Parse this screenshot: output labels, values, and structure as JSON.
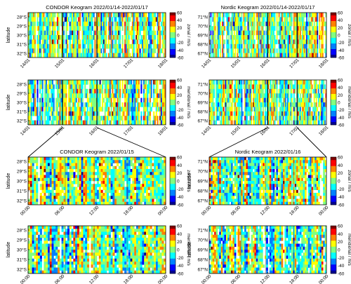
{
  "figure": {
    "colors": {
      "colormap": [
        "#00008f",
        "#0000ff",
        "#0080ff",
        "#00ffff",
        "#80ff80",
        "#ffff00",
        "#ff8000",
        "#ff0000",
        "#800000"
      ],
      "axis": "#000000",
      "connector": "#000000"
    }
  },
  "chart_data": [
    {
      "type": "heatmap",
      "title": "CONDOR Keogram 2022/01/14-2022/01/17",
      "ylabel": "latitude",
      "y_ticks": [
        "28°S",
        "29°S",
        "30°S",
        "31°S",
        "32°S"
      ],
      "x_ticks": [
        "14/01",
        "15/01",
        "16/01",
        "17/01",
        "18/01"
      ],
      "x_range": [
        "14/01",
        "18/01"
      ],
      "colorbar": {
        "label": "zonal / m/s",
        "range": [
          -60,
          60
        ],
        "ticks": [
          "60",
          "40",
          "20",
          "0",
          "-20",
          "-40",
          "-60"
        ]
      },
      "marked_times": [
        "15/01 00:00",
        "16/01 00:00"
      ]
    },
    {
      "type": "heatmap",
      "title": "Nordic Keogram 2022/01/14-2022/01/17",
      "ylabel": "",
      "y_ticks": [
        "71°N",
        "70°N",
        "69°N",
        "68°N",
        "67°N"
      ],
      "x_ticks": [
        "14/01",
        "15/01",
        "16/01",
        "17/01",
        "18/01"
      ],
      "x_range": [
        "14/01",
        "18/01"
      ],
      "colorbar": {
        "label": "zonal / m/s",
        "range": [
          -60,
          60
        ],
        "ticks": [
          "60",
          "40",
          "20",
          "0",
          "-20",
          "-40",
          "-60"
        ]
      },
      "marked_times": [
        "16/01 00:00",
        "17/01 00:00"
      ]
    },
    {
      "type": "heatmap",
      "title": "",
      "ylabel": "latitude",
      "y_ticks": [
        "28°S",
        "29°S",
        "30°S",
        "31°S",
        "32°S"
      ],
      "x_ticks": [
        "14/01",
        "15/01",
        "16/01",
        "17/01",
        "18/01"
      ],
      "x_range": [
        "14/01",
        "18/01"
      ],
      "colorbar": {
        "label": "meridional / m/s",
        "range": [
          -60,
          60
        ],
        "ticks": [
          "60",
          "40",
          "20",
          "0",
          "-20",
          "-40",
          "-60"
        ]
      },
      "marked_times": [
        "15/01 00:00",
        "16/01 00:00"
      ]
    },
    {
      "type": "heatmap",
      "title": "",
      "ylabel": "",
      "y_ticks": [
        "71°N",
        "70°N",
        "69°N",
        "68°N",
        "67°N"
      ],
      "x_ticks": [
        "14/01",
        "15/01",
        "16/01",
        "17/01",
        "18/01"
      ],
      "x_range": [
        "14/01",
        "18/01"
      ],
      "colorbar": {
        "label": "meridional / m/s",
        "range": [
          -60,
          60
        ],
        "ticks": [
          "60",
          "40",
          "20",
          "0",
          "-20",
          "-40",
          "-60"
        ]
      },
      "marked_times": [
        "16/01 00:00",
        "17/01 00:00"
      ]
    },
    {
      "type": "heatmap",
      "title": "CONDOR Keogram 2022/01/15",
      "ylabel": "latitude",
      "y_ticks": [
        "28°S",
        "29°S",
        "30°S",
        "31°S",
        "32°S"
      ],
      "x_ticks": [
        "00:00",
        "06:00",
        "12:00",
        "18:00",
        "00:00"
      ],
      "x_range": [
        "00:00",
        "24:00"
      ],
      "colorbar": {
        "label": "zonal / m/s",
        "range": [
          -60,
          60
        ],
        "ticks": [
          "60",
          "40",
          "20",
          "0",
          "-20",
          "-40",
          "-60"
        ]
      }
    },
    {
      "type": "heatmap",
      "title": "Nordic Keogram 2022/01/16",
      "ylabel": "latitude",
      "y_ticks": [
        "71°N",
        "70°N",
        "69°N",
        "68°N",
        "67°N"
      ],
      "x_ticks": [
        "00:00",
        "06:00",
        "12:00",
        "18:00",
        "00:00"
      ],
      "x_range": [
        "00:00",
        "24:00"
      ],
      "colorbar": {
        "label": "zonal / m/s",
        "range": [
          -60,
          60
        ],
        "ticks": [
          "60",
          "40",
          "20",
          "0",
          "-20",
          "-40",
          "-60"
        ]
      }
    },
    {
      "type": "heatmap",
      "title": "",
      "ylabel": "latitude",
      "y_ticks": [
        "28°S",
        "29°S",
        "30°S",
        "31°S",
        "32°S"
      ],
      "x_ticks": [
        "00:00",
        "06:00",
        "12:00",
        "18:00",
        "00:00"
      ],
      "x_range": [
        "00:00",
        "24:00"
      ],
      "colorbar": {
        "label": "meridional / m/s",
        "range": [
          -60,
          60
        ],
        "ticks": [
          "60",
          "40",
          "20",
          "0",
          "-20",
          "-40",
          "-60"
        ]
      }
    },
    {
      "type": "heatmap",
      "title": "",
      "ylabel": "latitude",
      "y_ticks": [
        "71°N",
        "70°N",
        "69°N",
        "68°N",
        "67°N"
      ],
      "x_ticks": [
        "00:00",
        "06:00",
        "12:00",
        "18:00",
        "00:00"
      ],
      "x_range": [
        "00:00",
        "24:00"
      ],
      "colorbar": {
        "label": "meridional / m/s",
        "range": [
          -60,
          60
        ],
        "ticks": [
          "60",
          "40",
          "20",
          "0",
          "-20",
          "-40",
          "-60"
        ]
      }
    }
  ]
}
